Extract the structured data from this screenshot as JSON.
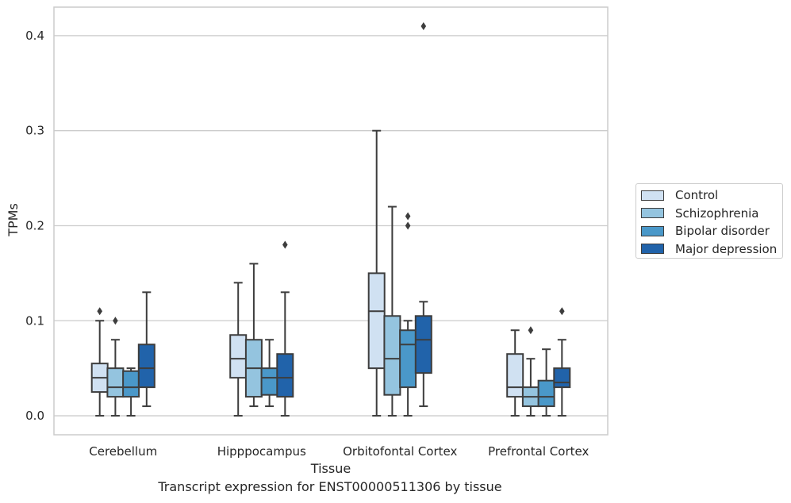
{
  "chart_data": {
    "type": "box",
    "title": "",
    "caption": "Transcript expression for ENST00000511306 by tissue",
    "xlabel": "Tissue",
    "ylabel": "TPMs",
    "ylim": [
      -0.02,
      0.43
    ],
    "yticks": [
      "0.0",
      "0.1",
      "0.2",
      "0.3",
      "0.4"
    ],
    "ytick_values": [
      0.0,
      0.1,
      0.2,
      0.3,
      0.4
    ],
    "grid": "horizontal",
    "legend_position": "right",
    "categories": [
      "Cerebellum",
      "Hipppocampus",
      "Orbitofontal Cortex",
      "Prefrontal Cortex"
    ],
    "series": [
      {
        "name": "Control",
        "color": "#d0e1f2",
        "boxes": [
          {
            "q1": 0.025,
            "median": 0.04,
            "q3": 0.055,
            "whisker_low": 0.0,
            "whisker_high": 0.1,
            "outliers": [
              0.11
            ]
          },
          {
            "q1": 0.04,
            "median": 0.06,
            "q3": 0.085,
            "whisker_low": 0.0,
            "whisker_high": 0.14,
            "outliers": []
          },
          {
            "q1": 0.05,
            "median": 0.11,
            "q3": 0.15,
            "whisker_low": 0.0,
            "whisker_high": 0.3,
            "outliers": []
          },
          {
            "q1": 0.02,
            "median": 0.03,
            "q3": 0.065,
            "whisker_low": 0.0,
            "whisker_high": 0.09,
            "outliers": []
          }
        ]
      },
      {
        "name": "Schizophrenia",
        "color": "#94c4df",
        "boxes": [
          {
            "q1": 0.02,
            "median": 0.03,
            "q3": 0.05,
            "whisker_low": 0.0,
            "whisker_high": 0.08,
            "outliers": [
              0.1
            ]
          },
          {
            "q1": 0.02,
            "median": 0.05,
            "q3": 0.08,
            "whisker_low": 0.01,
            "whisker_high": 0.16,
            "outliers": []
          },
          {
            "q1": 0.022,
            "median": 0.06,
            "q3": 0.105,
            "whisker_low": 0.0,
            "whisker_high": 0.22,
            "outliers": []
          },
          {
            "q1": 0.01,
            "median": 0.02,
            "q3": 0.03,
            "whisker_low": 0.0,
            "whisker_high": 0.06,
            "outliers": [
              0.09
            ]
          }
        ]
      },
      {
        "name": "Bipolar disorder",
        "color": "#4a98c9",
        "boxes": [
          {
            "q1": 0.02,
            "median": 0.03,
            "q3": 0.047,
            "whisker_low": 0.0,
            "whisker_high": 0.05,
            "outliers": []
          },
          {
            "q1": 0.022,
            "median": 0.04,
            "q3": 0.05,
            "whisker_low": 0.01,
            "whisker_high": 0.08,
            "outliers": []
          },
          {
            "q1": 0.03,
            "median": 0.075,
            "q3": 0.09,
            "whisker_low": 0.0,
            "whisker_high": 0.1,
            "outliers": [
              0.2,
              0.21
            ]
          },
          {
            "q1": 0.01,
            "median": 0.02,
            "q3": 0.037,
            "whisker_low": 0.0,
            "whisker_high": 0.07,
            "outliers": []
          }
        ]
      },
      {
        "name": "Major depression",
        "color": "#2163aa",
        "boxes": [
          {
            "q1": 0.03,
            "median": 0.05,
            "q3": 0.075,
            "whisker_low": 0.01,
            "whisker_high": 0.13,
            "outliers": []
          },
          {
            "q1": 0.02,
            "median": 0.04,
            "q3": 0.065,
            "whisker_low": 0.0,
            "whisker_high": 0.13,
            "outliers": [
              0.18
            ]
          },
          {
            "q1": 0.045,
            "median": 0.08,
            "q3": 0.105,
            "whisker_low": 0.01,
            "whisker_high": 0.12,
            "outliers": [
              0.41
            ]
          },
          {
            "q1": 0.03,
            "median": 0.035,
            "q3": 0.05,
            "whisker_low": 0.0,
            "whisker_high": 0.08,
            "outliers": [
              0.11
            ]
          }
        ]
      }
    ]
  }
}
